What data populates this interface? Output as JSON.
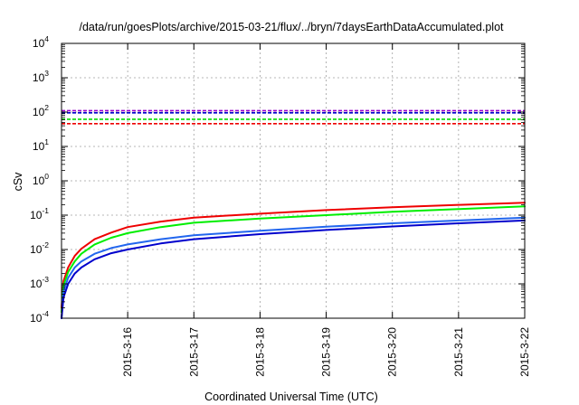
{
  "chart_data": {
    "type": "line",
    "title": "/data/run/goesPlots/archive/2015-03-21/flux/../bryn/7daysEarthDataAccumulated.plot",
    "xlabel": "Coordinated Universal Time (UTC)",
    "ylabel": "cSv",
    "y_scale": "log",
    "ylim": [
      0.0001,
      10000
    ],
    "xlim": [
      0,
      7
    ],
    "grid": true,
    "x_ticks": [
      {
        "x": 1,
        "label": "2015-3-16"
      },
      {
        "x": 2,
        "label": "2015-3-17"
      },
      {
        "x": 3,
        "label": "2015-3-18"
      },
      {
        "x": 4,
        "label": "2015-3-19"
      },
      {
        "x": 5,
        "label": "2015-3-20"
      },
      {
        "x": 6,
        "label": "2015-3-21"
      },
      {
        "x": 7,
        "label": "2015-3-22"
      }
    ],
    "y_ticks": [
      {
        "value": 0.0001,
        "base": "10",
        "exp": "-4"
      },
      {
        "value": 0.001,
        "base": "10",
        "exp": "-3"
      },
      {
        "value": 0.01,
        "base": "10",
        "exp": "-2"
      },
      {
        "value": 0.1,
        "base": "10",
        "exp": "-1"
      },
      {
        "value": 1,
        "base": "10",
        "exp": "0"
      },
      {
        "value": 10,
        "base": "10",
        "exp": "1"
      },
      {
        "value": 100,
        "base": "10",
        "exp": "2"
      },
      {
        "value": 1000,
        "base": "10",
        "exp": "3"
      },
      {
        "value": 10000,
        "base": "10",
        "exp": "4"
      }
    ],
    "series": [
      {
        "color": "#ee0000",
        "style": "solid",
        "x": [
          0.0,
          0.03,
          0.1,
          0.2,
          0.3,
          0.5,
          0.75,
          1.0,
          1.5,
          2.0,
          3.0,
          4.0,
          5.0,
          6.0,
          7.0
        ],
        "values": [
          0.0002,
          0.0012,
          0.003,
          0.0065,
          0.0105,
          0.02,
          0.031,
          0.045,
          0.065,
          0.085,
          0.11,
          0.14,
          0.17,
          0.2,
          0.23
        ]
      },
      {
        "color": "#00ee00",
        "style": "solid",
        "x": [
          0.0,
          0.03,
          0.1,
          0.2,
          0.3,
          0.5,
          0.75,
          1.0,
          1.5,
          2.0,
          3.0,
          4.0,
          5.0,
          6.0,
          7.0
        ],
        "values": [
          0.00015,
          0.0009,
          0.0022,
          0.0045,
          0.0075,
          0.014,
          0.022,
          0.03,
          0.045,
          0.06,
          0.08,
          0.1,
          0.125,
          0.15,
          0.18
        ]
      },
      {
        "color": "#2266ee",
        "style": "solid",
        "x": [
          0.0,
          0.03,
          0.1,
          0.2,
          0.3,
          0.5,
          0.75,
          1.0,
          1.5,
          2.0,
          3.0,
          4.0,
          5.0,
          6.0,
          7.0
        ],
        "values": [
          0.0001,
          0.0006,
          0.0015,
          0.003,
          0.0045,
          0.0075,
          0.011,
          0.014,
          0.02,
          0.026,
          0.035,
          0.046,
          0.058,
          0.07,
          0.085
        ]
      },
      {
        "color": "#0000cc",
        "style": "solid",
        "x": [
          0.0,
          0.03,
          0.1,
          0.2,
          0.3,
          0.5,
          0.75,
          1.0,
          1.5,
          2.0,
          3.0,
          4.0,
          5.0,
          6.0,
          7.0
        ],
        "values": [
          0.0001,
          0.0004,
          0.001,
          0.002,
          0.003,
          0.0052,
          0.0078,
          0.01,
          0.015,
          0.02,
          0.028,
          0.037,
          0.047,
          0.058,
          0.07
        ]
      },
      {
        "color": "#9900cc",
        "style": "dashed",
        "x": [
          0,
          7
        ],
        "values": [
          110,
          110
        ]
      },
      {
        "color": "#0000cc",
        "style": "dashed",
        "x": [
          0,
          7
        ],
        "values": [
          95,
          95
        ]
      },
      {
        "color": "#00dd00",
        "style": "dashed",
        "x": [
          0,
          7
        ],
        "values": [
          62,
          62
        ]
      },
      {
        "color": "#ee0000",
        "style": "dashed",
        "x": [
          0,
          7
        ],
        "values": [
          46,
          46
        ]
      }
    ]
  }
}
